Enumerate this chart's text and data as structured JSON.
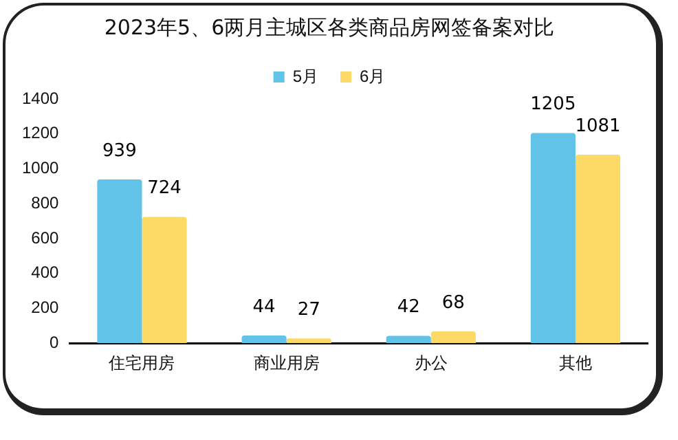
{
  "chart_data": {
    "type": "bar",
    "title": "2023年5、6两月主城区各类商品房网签备案对比",
    "categories": [
      "住宅用房",
      "商业用房",
      "办公",
      "其他"
    ],
    "series": [
      {
        "name": "5月",
        "color": "#62c3e8",
        "values": [
          939,
          44,
          42,
          1205
        ]
      },
      {
        "name": "6月",
        "color": "#fdd966",
        "values": [
          724,
          27,
          68,
          1081
        ]
      }
    ],
    "ylim": [
      0,
      1400
    ],
    "yticks": [
      0,
      200,
      400,
      600,
      800,
      1000,
      1200,
      1400
    ],
    "grid": false,
    "legend": "top",
    "data_labels": true
  }
}
